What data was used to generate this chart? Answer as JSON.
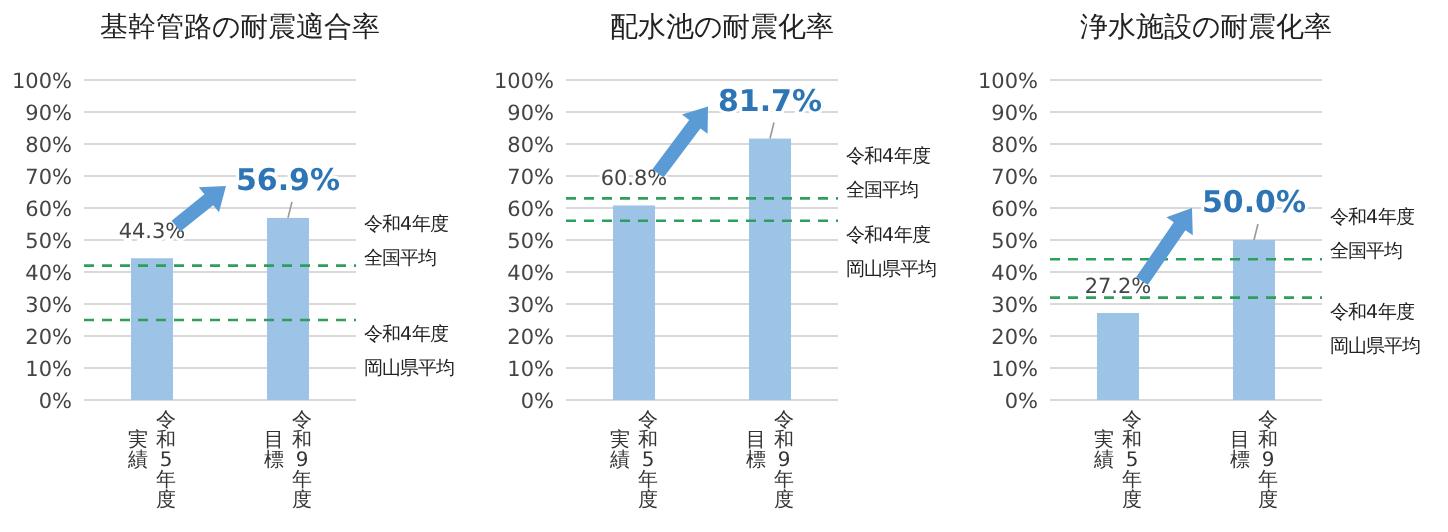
{
  "chart_data": [
    {
      "type": "bar",
      "title": "基幹管路の耐震適合率",
      "categories": [
        "令和5年度実績",
        "令和9年度目標"
      ],
      "values": [
        44.3,
        56.9
      ],
      "value_labels": [
        "44.3%",
        "56.9%"
      ],
      "color": "#9dc3e6",
      "ylim": [
        0,
        100
      ],
      "yticks": [
        {
          "value": 0,
          "label": "0%"
        },
        {
          "value": 10,
          "label": "10%"
        },
        {
          "value": 20,
          "label": "20%"
        },
        {
          "value": 30,
          "label": "30%"
        },
        {
          "value": 40,
          "label": "40%"
        },
        {
          "value": 50,
          "label": "50%"
        },
        {
          "value": 60,
          "label": "60%"
        },
        {
          "value": 70,
          "label": "70%"
        },
        {
          "value": 80,
          "label": "80%"
        },
        {
          "value": 90,
          "label": "90%"
        },
        {
          "value": 100,
          "label": "100%"
        }
      ],
      "grid": "y",
      "ref_lines": [
        {
          "axis": "y",
          "value": 42,
          "label": "令和4年度全国平均",
          "color": "#2e9e5b",
          "line_style": "dashed"
        },
        {
          "axis": "y",
          "value": 25,
          "label": "令和4年度岡山県平均",
          "color": "#2e9e5b",
          "line_style": "dashed"
        }
      ]
    },
    {
      "type": "bar",
      "title": "配水池の耐震化率",
      "categories": [
        "令和5年度実績",
        "令和9年度目標"
      ],
      "values": [
        60.8,
        81.7
      ],
      "value_labels": [
        "60.8%",
        "81.7%"
      ],
      "color": "#9dc3e6",
      "ylim": [
        0,
        100
      ],
      "yticks": [
        {
          "value": 0,
          "label": "0%"
        },
        {
          "value": 10,
          "label": "10%"
        },
        {
          "value": 20,
          "label": "20%"
        },
        {
          "value": 30,
          "label": "30%"
        },
        {
          "value": 40,
          "label": "40%"
        },
        {
          "value": 50,
          "label": "50%"
        },
        {
          "value": 60,
          "label": "60%"
        },
        {
          "value": 70,
          "label": "70%"
        },
        {
          "value": 80,
          "label": "80%"
        },
        {
          "value": 90,
          "label": "90%"
        },
        {
          "value": 100,
          "label": "100%"
        }
      ],
      "grid": "y",
      "ref_lines": [
        {
          "axis": "y",
          "value": 63,
          "label": "令和4年度全国平均",
          "color": "#2e9e5b",
          "line_style": "dashed"
        },
        {
          "axis": "y",
          "value": 56,
          "label": "令和4年度岡山県平均",
          "color": "#2e9e5b",
          "line_style": "dashed"
        }
      ]
    },
    {
      "type": "bar",
      "title": "浄水施設の耐震化率",
      "categories": [
        "令和5年度実績",
        "令和9年度目標"
      ],
      "values": [
        27.2,
        50.0
      ],
      "value_labels": [
        "27.2%",
        "50.0%"
      ],
      "color": "#9dc3e6",
      "ylim": [
        0,
        100
      ],
      "yticks": [
        {
          "value": 0,
          "label": "0%"
        },
        {
          "value": 10,
          "label": "10%"
        },
        {
          "value": 20,
          "label": "20%"
        },
        {
          "value": 30,
          "label": "30%"
        },
        {
          "value": 40,
          "label": "40%"
        },
        {
          "value": 50,
          "label": "50%"
        },
        {
          "value": 60,
          "label": "60%"
        },
        {
          "value": 70,
          "label": "70%"
        },
        {
          "value": 80,
          "label": "80%"
        },
        {
          "value": 90,
          "label": "90%"
        },
        {
          "value": 100,
          "label": "100%"
        }
      ],
      "grid": "y",
      "ref_lines": [
        {
          "axis": "y",
          "value": 44,
          "label": "令和4年度全国平均",
          "color": "#2e9e5b",
          "line_style": "dashed"
        },
        {
          "axis": "y",
          "value": 32,
          "label": "令和4年度岡山県平均",
          "color": "#2e9e5b",
          "line_style": "dashed"
        }
      ]
    }
  ]
}
